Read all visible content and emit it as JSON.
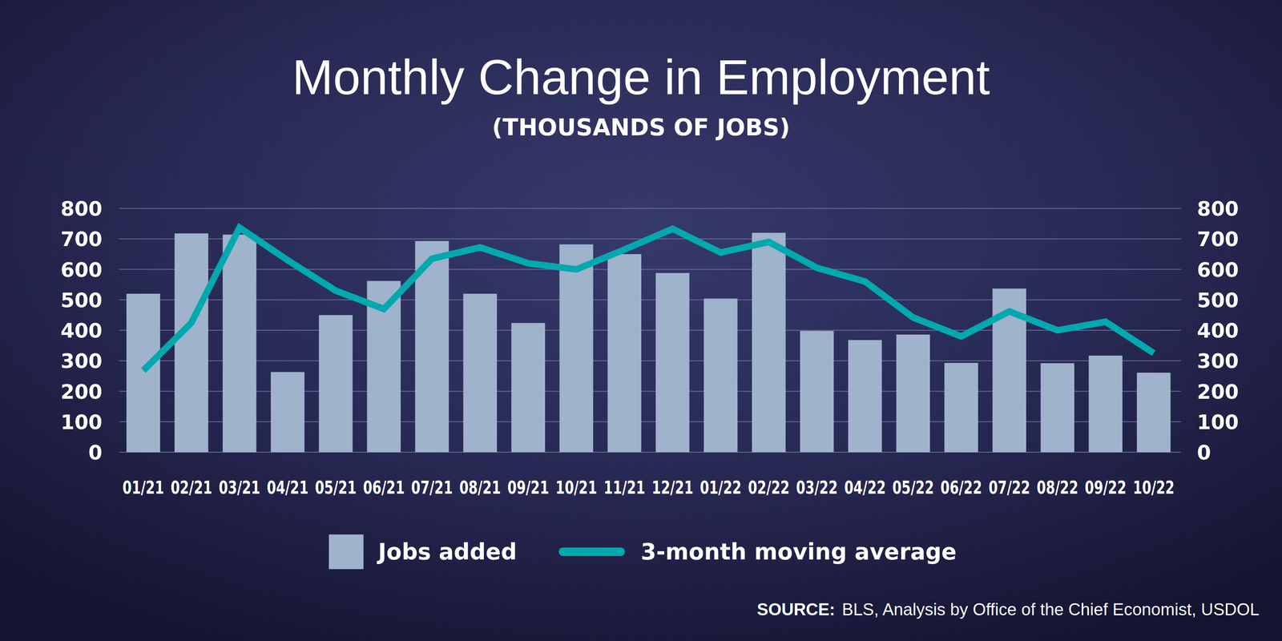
{
  "chart_data": {
    "type": "bar",
    "title": "Monthly Change in Employment",
    "subtitle": "(THOUSANDS OF JOBS)",
    "source_label": "SOURCE:",
    "source": "BLS, Analysis by Office of the Chief Economist, USDOL",
    "categories": [
      "01/21",
      "02/21",
      "03/21",
      "04/21",
      "05/21",
      "06/21",
      "07/21",
      "08/21",
      "09/21",
      "10/21",
      "11/21",
      "12/21",
      "01/22",
      "02/22",
      "03/22",
      "04/22",
      "05/22",
      "06/22",
      "07/22",
      "08/22",
      "09/22",
      "10/22"
    ],
    "series": [
      {
        "name": "Jobs added",
        "type": "bar",
        "color": "#9fb3cc",
        "values": [
          520,
          718,
          714,
          263,
          450,
          562,
          693,
          520,
          424,
          682,
          650,
          588,
          504,
          720,
          398,
          368,
          386,
          293,
          537,
          292,
          317,
          261
        ]
      },
      {
        "name": "3-month moving average",
        "type": "line",
        "color": "#00a9ae",
        "axis": "y2",
        "values": [
          268,
          425,
          737,
          630,
          530,
          470,
          635,
          672,
          620,
          600,
          665,
          733,
          655,
          690,
          605,
          560,
          442,
          380,
          462,
          400,
          428,
          325
        ]
      }
    ],
    "ylim": [
      0,
      800
    ],
    "yticks": [
      0,
      100,
      200,
      300,
      400,
      500,
      600,
      700,
      800
    ],
    "y2lim": [
      0,
      800
    ],
    "y2ticks": [
      0,
      100,
      200,
      300,
      400,
      500,
      600,
      700,
      800
    ],
    "grid": true,
    "legend": "bottom"
  }
}
